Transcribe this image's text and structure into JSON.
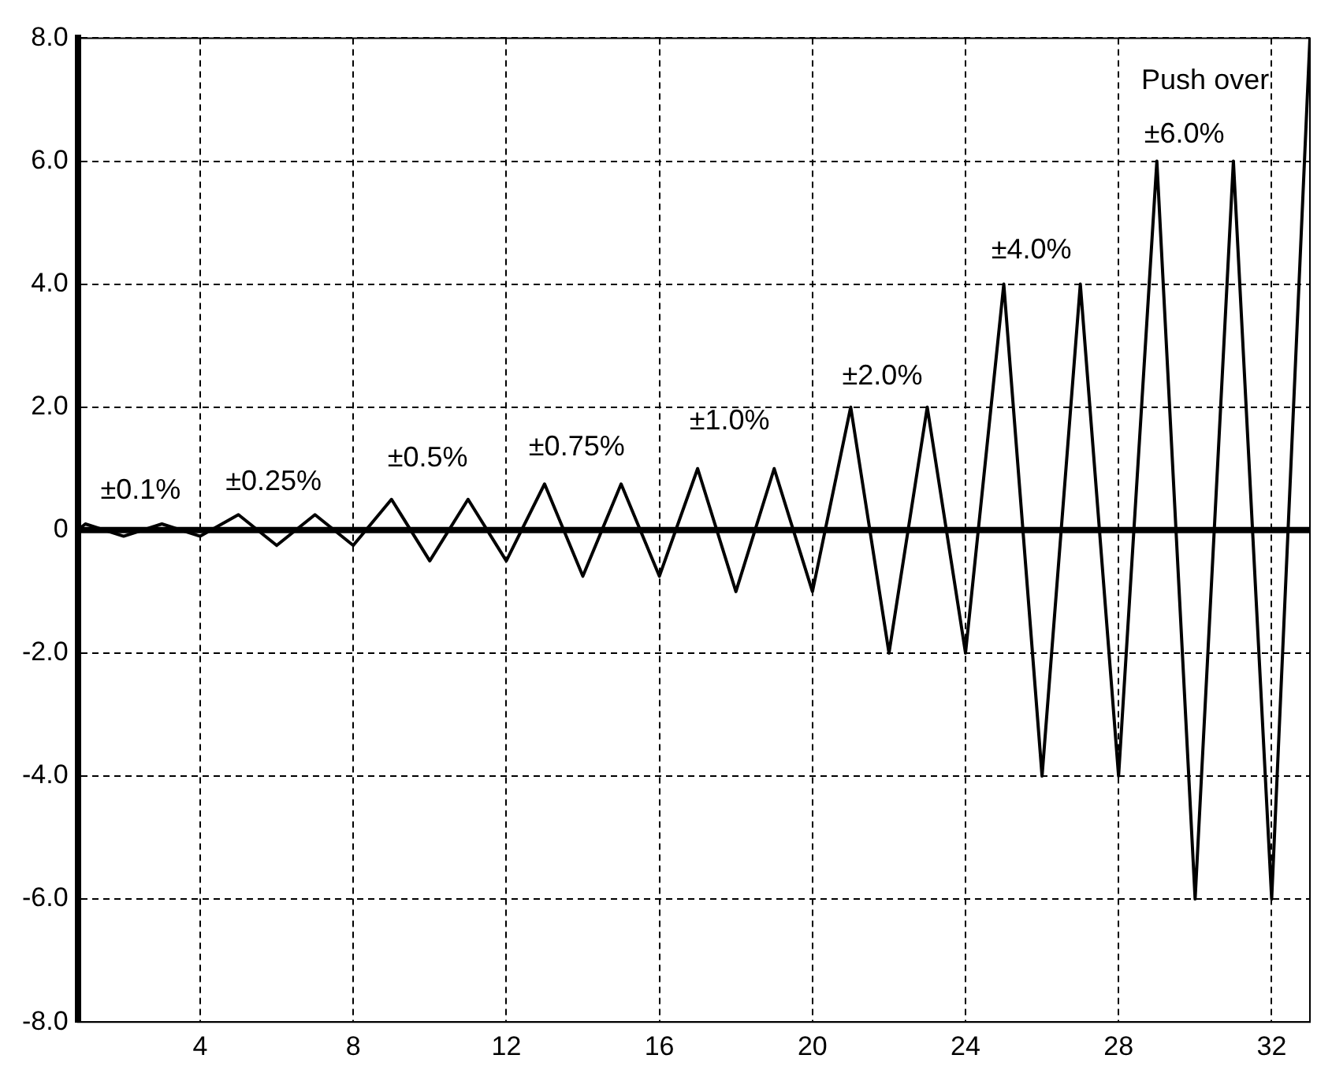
{
  "chart_data": {
    "type": "line",
    "x": [
      0.8,
      1,
      2,
      3,
      4,
      5,
      6,
      7,
      8,
      9,
      10,
      11,
      12,
      13,
      14,
      15,
      16,
      17,
      18,
      19,
      20,
      21,
      22,
      23,
      24,
      25,
      26,
      27,
      28,
      29,
      30,
      31,
      32,
      33
    ],
    "series": [
      {
        "color": "#000000",
        "values": [
          0,
          0.1,
          -0.1,
          0.1,
          -0.1,
          0.25,
          -0.25,
          0.25,
          -0.25,
          0.5,
          -0.5,
          0.5,
          -0.5,
          0.75,
          -0.75,
          0.75,
          -0.75,
          1,
          -1,
          1,
          -1,
          2,
          -2,
          2,
          -2,
          4,
          -4,
          4,
          -4,
          6,
          -6,
          6,
          -6,
          8
        ]
      }
    ],
    "xlim": [
      0.8,
      33
    ],
    "xticks": [
      4,
      8,
      12,
      16,
      20,
      24,
      28,
      32
    ],
    "ylim": [
      -8,
      8
    ],
    "yticks": [
      {
        "value": 8,
        "label": "8.0"
      },
      {
        "value": 6,
        "label": "6.0"
      },
      {
        "value": 4,
        "label": "4.0"
      },
      {
        "value": 2,
        "label": "2.0"
      },
      0,
      {
        "value": -2,
        "label": "-2.0"
      },
      {
        "value": -4,
        "label": "-4.0"
      },
      {
        "value": -6,
        "label": "-6.0"
      },
      {
        "value": -8,
        "label": "-8.0"
      }
    ],
    "grid": true,
    "ref_lines": [
      {
        "axis": "y",
        "value": 0,
        "color": "#000000"
      }
    ],
    "marker": "none",
    "line_style": "solid",
    "annotations": [
      "±0.1%",
      "±0.25%",
      "±0.5%",
      "±0.75%",
      "±1.0%",
      "±2.0%",
      "±4.0%",
      "±6.0%",
      "Push over"
    ]
  }
}
